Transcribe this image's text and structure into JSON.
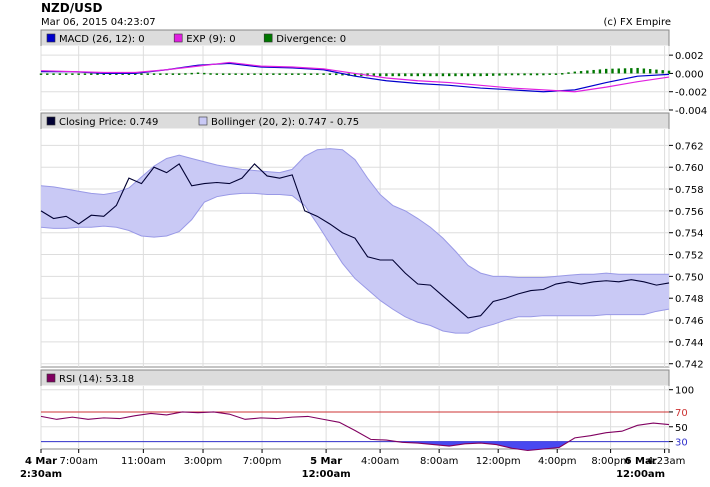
{
  "header": {
    "symbol": "NZD/USD",
    "timestamp": "Mar 06, 2015 04:23:07",
    "credit": "(c) FX Empire"
  },
  "colors": {
    "macd": "#0000cc",
    "exp": "#e020e0",
    "divergence": "#007700",
    "price": "#000033",
    "bollinger_fill": "#c9c9f5",
    "bollinger_stroke": "#9999e6",
    "rsi": "#800060",
    "rsi_oversold_fill": "#4848f0",
    "level_70": "#cc3333",
    "level_30": "#3333cc",
    "legend_bg": "#dcdcdc",
    "grid": "#dddddd"
  },
  "chart_data": [
    {
      "type": "line",
      "panel": "macd",
      "legend": [
        {
          "label": "MACD (26, 12): 0",
          "color_key": "macd"
        },
        {
          "label": "EXP (9): 0",
          "color_key": "exp"
        },
        {
          "label": "Divergence: 0",
          "color_key": "divergence"
        }
      ],
      "ylim": [
        -0.004,
        0.003
      ],
      "yticks": [
        0.002,
        0.0,
        -0.002,
        -0.004
      ],
      "ytick_labels": [
        "0.002",
        "0.000",
        "-0.002",
        "-0.004"
      ],
      "x": [
        0,
        5,
        10,
        15,
        20,
        25,
        30,
        35,
        40,
        45,
        50,
        55,
        60,
        65,
        70,
        75,
        80,
        85,
        90,
        95,
        100
      ],
      "series": [
        {
          "name": "MACD (26, 12)",
          "color_key": "macd",
          "values": [
            0.0002,
            0.0002,
            0.0,
            0.0,
            0.0004,
            0.0009,
            0.0011,
            0.0007,
            0.0006,
            0.0004,
            -0.0003,
            -0.0008,
            -0.0011,
            -0.0013,
            -0.0016,
            -0.0018,
            -0.002,
            -0.0018,
            -0.001,
            -0.0003,
            -0.0001
          ]
        },
        {
          "name": "EXP (9)",
          "color_key": "exp",
          "values": [
            0.0003,
            0.0002,
            0.0001,
            0.0001,
            0.0004,
            0.0008,
            0.0012,
            0.0008,
            0.0007,
            0.0005,
            0.0,
            -0.0005,
            -0.0008,
            -0.001,
            -0.0013,
            -0.0016,
            -0.0018,
            -0.002,
            -0.0015,
            -0.0009,
            -0.0004
          ]
        },
        {
          "name": "Divergence",
          "color_key": "divergence",
          "style": "bars",
          "values": [
            -0.0001,
            0.0,
            -0.0001,
            -0.0001,
            -0.0001,
            0.0001,
            -0.0001,
            -0.0001,
            -0.0001,
            -0.0001,
            -0.0003,
            -0.0003,
            -0.0003,
            -0.0003,
            -0.0003,
            -0.0002,
            -0.0002,
            0.0002,
            0.0005,
            0.0006,
            0.0003
          ]
        }
      ]
    },
    {
      "type": "line",
      "panel": "price",
      "legend": [
        {
          "label": "Closing Price: 0.749",
          "color_key": "price"
        },
        {
          "label": "Bollinger (20, 2): 0.747 - 0.75",
          "color_key": "bollinger_fill"
        }
      ],
      "ylim": [
        0.7417,
        0.7635
      ],
      "yticks": [
        0.762,
        0.76,
        0.758,
        0.756,
        0.754,
        0.752,
        0.75,
        0.748,
        0.746,
        0.744,
        0.742
      ],
      "ytick_labels": [
        "0.762",
        "0.760",
        "0.758",
        "0.756",
        "0.754",
        "0.752",
        "0.750",
        "0.748",
        "0.746",
        "0.744",
        "0.742"
      ],
      "x": [
        0,
        2,
        4,
        6,
        8,
        10,
        12,
        14,
        16,
        18,
        20,
        22,
        24,
        26,
        28,
        30,
        32,
        34,
        36,
        38,
        40,
        42,
        44,
        46,
        48,
        50,
        52,
        54,
        56,
        58,
        60,
        62,
        64,
        66,
        68,
        70,
        72,
        74,
        76,
        78,
        80,
        82,
        84,
        86,
        88,
        90,
        92,
        94,
        96,
        98,
        100
      ],
      "series": [
        {
          "name": "Closing Price",
          "color_key": "price",
          "values": [
            0.756,
            0.7553,
            0.7555,
            0.7548,
            0.7556,
            0.7555,
            0.7565,
            0.759,
            0.7585,
            0.76,
            0.7595,
            0.7603,
            0.7583,
            0.7585,
            0.7586,
            0.7585,
            0.759,
            0.7603,
            0.7592,
            0.759,
            0.7593,
            0.756,
            0.7555,
            0.7548,
            0.754,
            0.7535,
            0.7518,
            0.7515,
            0.7515,
            0.7503,
            0.7493,
            0.7492,
            0.7482,
            0.7472,
            0.7462,
            0.7464,
            0.7477,
            0.748,
            0.7484,
            0.7487,
            0.7488,
            0.7493,
            0.7495,
            0.7493,
            0.7495,
            0.7496,
            0.7495,
            0.7497,
            0.7495,
            0.7492,
            0.7494
          ]
        },
        {
          "name": "Bollinger upper",
          "color_key": "bollinger_stroke",
          "style": "band-upper",
          "values": [
            0.7583,
            0.7582,
            0.758,
            0.7578,
            0.7576,
            0.7575,
            0.7577,
            0.7581,
            0.7591,
            0.7601,
            0.7608,
            0.7611,
            0.7608,
            0.7605,
            0.7602,
            0.76,
            0.7598,
            0.7597,
            0.7596,
            0.7595,
            0.7598,
            0.761,
            0.7616,
            0.7617,
            0.7616,
            0.7607,
            0.759,
            0.7575,
            0.7565,
            0.756,
            0.7553,
            0.7545,
            0.7535,
            0.7523,
            0.751,
            0.7503,
            0.75,
            0.75,
            0.7499,
            0.7499,
            0.7499,
            0.75,
            0.7501,
            0.7502,
            0.7502,
            0.7503,
            0.7502,
            0.7502,
            0.7502,
            0.7502,
            0.7502
          ]
        },
        {
          "name": "Bollinger lower",
          "color_key": "bollinger_stroke",
          "style": "band-lower",
          "values": [
            0.7545,
            0.7544,
            0.7544,
            0.7545,
            0.7545,
            0.7546,
            0.7545,
            0.7542,
            0.7537,
            0.7536,
            0.7537,
            0.7541,
            0.7552,
            0.7568,
            0.7573,
            0.7575,
            0.7576,
            0.7576,
            0.7575,
            0.7575,
            0.7574,
            0.7565,
            0.7548,
            0.753,
            0.7512,
            0.7498,
            0.7488,
            0.7478,
            0.747,
            0.7463,
            0.7458,
            0.7455,
            0.745,
            0.7448,
            0.7448,
            0.7453,
            0.7456,
            0.746,
            0.7463,
            0.7463,
            0.7464,
            0.7464,
            0.7464,
            0.7464,
            0.7464,
            0.7465,
            0.7465,
            0.7465,
            0.7465,
            0.7468,
            0.747
          ]
        }
      ]
    },
    {
      "type": "line",
      "panel": "rsi",
      "legend": [
        {
          "label": "RSI (14): 53.18",
          "color_key": "rsi"
        }
      ],
      "ylim": [
        20,
        105
      ],
      "yticks": [
        100,
        70,
        50,
        30
      ],
      "ytick_labels": [
        "100",
        "70",
        "50",
        "30"
      ],
      "levels": [
        {
          "value": 70,
          "color_key": "level_70"
        },
        {
          "value": 30,
          "color_key": "level_30"
        }
      ],
      "x": [
        0,
        2.5,
        5,
        7.5,
        10,
        12.5,
        15,
        17.5,
        20,
        22.5,
        25,
        27.5,
        30,
        32.5,
        35,
        37.5,
        40,
        42.5,
        45,
        47.5,
        50,
        52.5,
        55,
        57.5,
        60,
        62.5,
        65,
        67.5,
        70,
        72.5,
        75,
        77.5,
        80,
        82.5,
        85,
        87.5,
        90,
        92.5,
        95,
        97.5,
        100
      ],
      "series": [
        {
          "name": "RSI (14)",
          "color_key": "rsi",
          "values": [
            64,
            60,
            63,
            60,
            62,
            61,
            65,
            68,
            66,
            70,
            69,
            70,
            67,
            60,
            62,
            61,
            63,
            64,
            60,
            56,
            45,
            33,
            32,
            29,
            28,
            26,
            24,
            27,
            28,
            26,
            21,
            18,
            20,
            22,
            35,
            38,
            42,
            44,
            52,
            55,
            53
          ]
        }
      ]
    }
  ],
  "xaxis": {
    "ticks": [
      {
        "pos": 0.0,
        "line1": "4 Mar",
        "line2": "2:30am",
        "bold": true
      },
      {
        "pos": 0.06,
        "line1": "7:00am",
        "line2": "",
        "bold": false
      },
      {
        "pos": 0.163,
        "line1": "11:00am",
        "line2": "",
        "bold": false
      },
      {
        "pos": 0.258,
        "line1": "3:00pm",
        "line2": "",
        "bold": false
      },
      {
        "pos": 0.352,
        "line1": "7:00pm",
        "line2": "",
        "bold": false
      },
      {
        "pos": 0.454,
        "line1": "5 Mar",
        "line2": "12:00am",
        "bold": true
      },
      {
        "pos": 0.54,
        "line1": "4:00am",
        "line2": "",
        "bold": false
      },
      {
        "pos": 0.634,
        "line1": "8:00am",
        "line2": "",
        "bold": false
      },
      {
        "pos": 0.728,
        "line1": "12:00pm",
        "line2": "",
        "bold": false
      },
      {
        "pos": 0.822,
        "line1": "4:00pm",
        "line2": "",
        "bold": false
      },
      {
        "pos": 0.907,
        "line1": "8:00pm",
        "line2": "",
        "bold": false
      },
      {
        "pos": 0.993,
        "line1": "6 Mar",
        "line2": "12:00am",
        "bold": true
      },
      {
        "pos": 1.0,
        "line1": "4:23am",
        "line2": "",
        "bold": false
      }
    ]
  }
}
